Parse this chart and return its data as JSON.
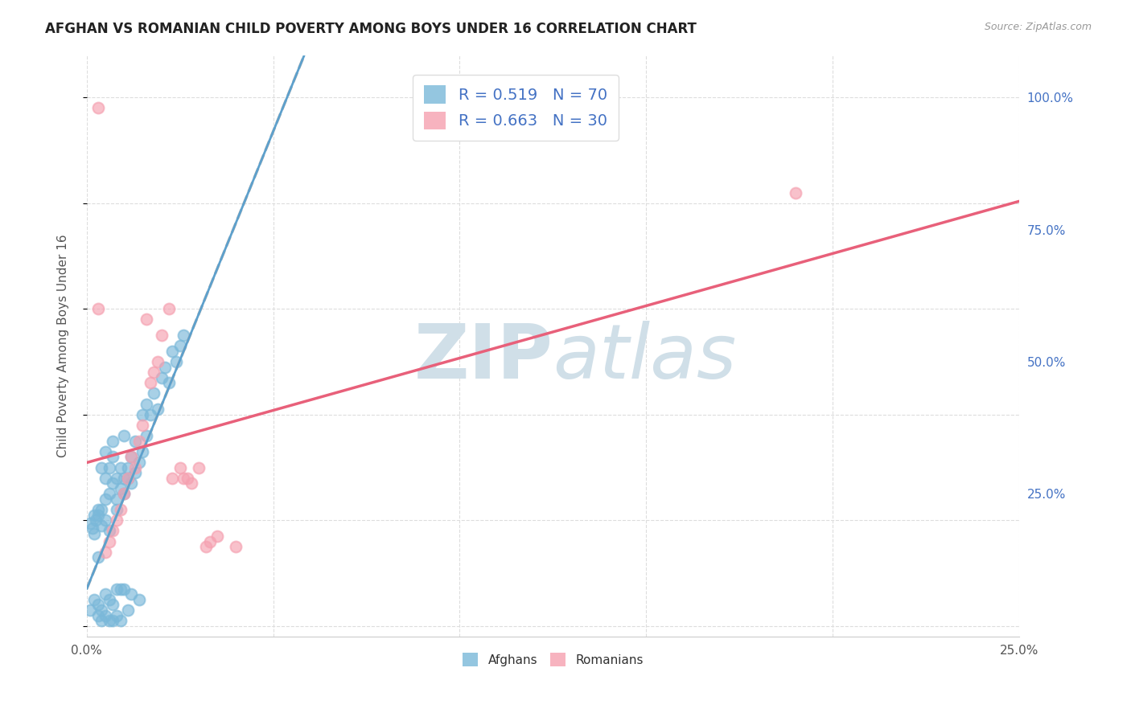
{
  "title": "AFGHAN VS ROMANIAN CHILD POVERTY AMONG BOYS UNDER 16 CORRELATION CHART",
  "source": "Source: ZipAtlas.com",
  "ylabel": "Child Poverty Among Boys Under 16",
  "ytick_labels": [
    "100.0%",
    "75.0%",
    "50.0%",
    "25.0%"
  ],
  "ytick_values": [
    1.0,
    0.75,
    0.5,
    0.25
  ],
  "xlim": [
    0.0,
    0.25
  ],
  "ylim": [
    -0.02,
    1.08
  ],
  "legend_line1": "R = 0.519   N = 70",
  "legend_line2": "R = 0.663   N = 30",
  "afghan_color": "#7ab8d9",
  "romanian_color": "#f5a0b0",
  "trendline_afghan_dashed_color": "#bbbbbb",
  "trendline_afghan_solid_color": "#5da0cc",
  "trendline_romanian_color": "#e8607a",
  "watermark": "ZIPatlas",
  "watermark_color": "#d0dfe8",
  "background_color": "#ffffff",
  "grid_color": "#dddddd",
  "scatter_alpha": 0.65,
  "scatter_size": 100,
  "bottom_legend_labels": [
    "Afghans",
    "Romanians"
  ],
  "afghan_scatter_x": [
    0.001,
    0.0015,
    0.002,
    0.002,
    0.0025,
    0.003,
    0.003,
    0.003,
    0.004,
    0.004,
    0.004,
    0.005,
    0.005,
    0.005,
    0.005,
    0.006,
    0.006,
    0.006,
    0.007,
    0.007,
    0.007,
    0.008,
    0.008,
    0.008,
    0.009,
    0.009,
    0.01,
    0.01,
    0.01,
    0.011,
    0.011,
    0.012,
    0.012,
    0.013,
    0.013,
    0.014,
    0.015,
    0.015,
    0.016,
    0.016,
    0.017,
    0.018,
    0.019,
    0.02,
    0.021,
    0.022,
    0.023,
    0.024,
    0.025,
    0.026,
    0.001,
    0.002,
    0.003,
    0.004,
    0.005,
    0.006,
    0.007,
    0.008,
    0.009,
    0.01,
    0.012,
    0.014,
    0.003,
    0.004,
    0.005,
    0.006,
    0.007,
    0.008,
    0.009,
    0.011
  ],
  "afghan_scatter_y": [
    0.195,
    0.185,
    0.175,
    0.21,
    0.2,
    0.13,
    0.21,
    0.22,
    0.19,
    0.22,
    0.3,
    0.24,
    0.28,
    0.33,
    0.2,
    0.25,
    0.3,
    0.18,
    0.27,
    0.32,
    0.35,
    0.24,
    0.28,
    0.22,
    0.26,
    0.3,
    0.28,
    0.36,
    0.25,
    0.3,
    0.28,
    0.27,
    0.32,
    0.29,
    0.35,
    0.31,
    0.33,
    0.4,
    0.36,
    0.42,
    0.4,
    0.44,
    0.41,
    0.47,
    0.49,
    0.46,
    0.52,
    0.5,
    0.53,
    0.55,
    0.03,
    0.05,
    0.04,
    0.03,
    0.06,
    0.05,
    0.04,
    0.07,
    0.07,
    0.07,
    0.06,
    0.05,
    0.02,
    0.01,
    0.02,
    0.01,
    0.01,
    0.02,
    0.01,
    0.03
  ],
  "romanian_scatter_x": [
    0.003,
    0.005,
    0.006,
    0.007,
    0.008,
    0.009,
    0.01,
    0.011,
    0.012,
    0.013,
    0.014,
    0.015,
    0.016,
    0.017,
    0.018,
    0.019,
    0.02,
    0.022,
    0.023,
    0.025,
    0.026,
    0.027,
    0.028,
    0.03,
    0.032,
    0.033,
    0.035,
    0.04,
    0.19,
    0.003
  ],
  "romanian_scatter_y": [
    0.6,
    0.14,
    0.16,
    0.18,
    0.2,
    0.22,
    0.25,
    0.28,
    0.32,
    0.3,
    0.35,
    0.38,
    0.58,
    0.46,
    0.48,
    0.5,
    0.55,
    0.6,
    0.28,
    0.3,
    0.28,
    0.28,
    0.27,
    0.3,
    0.15,
    0.16,
    0.17,
    0.15,
    0.82,
    0.98
  ]
}
